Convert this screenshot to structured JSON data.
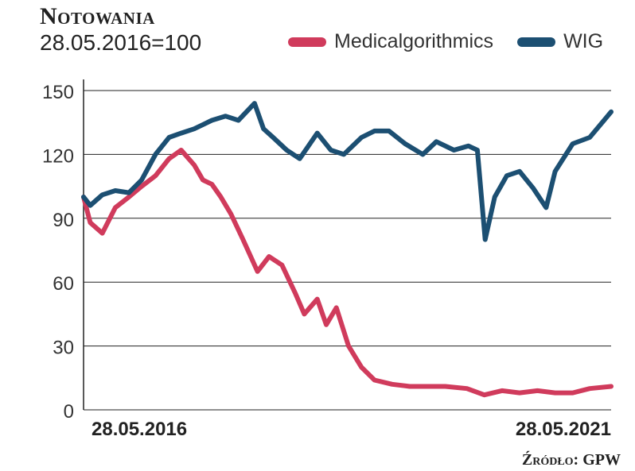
{
  "title": "Notowania",
  "subtitle": "28.05.2016=100",
  "source": "Źródło: GPW",
  "colors": {
    "medicalgorithmics": "#d03b5c",
    "wig": "#1c4f72",
    "grid": "#222222"
  },
  "chart_data": {
    "type": "line",
    "title": "Notowania",
    "subtitle": "28.05.2016=100",
    "ylim": [
      0,
      150
    ],
    "yticks": [
      "0",
      "30",
      "60",
      "90",
      "120",
      "150"
    ],
    "xlim": [
      "2016-05-28",
      "2021-05-28"
    ],
    "xticks": [
      "28.05.2016",
      "28.05.2021"
    ],
    "grid": true,
    "legend": "top-right",
    "series": [
      {
        "name": "Medicalgorithmics",
        "x": [
          "2016-05-28",
          "2016-06-20",
          "2016-08-01",
          "2016-09-15",
          "2016-11-01",
          "2016-12-15",
          "2017-02-01",
          "2017-03-20",
          "2017-05-01",
          "2017-06-15",
          "2017-07-15",
          "2017-08-15",
          "2017-09-15",
          "2017-10-20",
          "2017-12-01",
          "2018-01-20",
          "2018-03-01",
          "2018-04-15",
          "2018-05-30",
          "2018-07-01",
          "2018-08-15",
          "2018-09-15",
          "2018-10-20",
          "2018-12-01",
          "2019-01-15",
          "2019-03-01",
          "2019-05-01",
          "2019-07-01",
          "2019-09-01",
          "2019-11-01",
          "2020-01-15",
          "2020-03-15",
          "2020-05-15",
          "2020-07-15",
          "2020-09-15",
          "2020-11-15",
          "2021-01-15",
          "2021-03-15",
          "2021-05-28"
        ],
        "values": [
          100,
          88,
          83,
          95,
          100,
          105,
          110,
          118,
          122,
          115,
          108,
          106,
          100,
          92,
          80,
          65,
          72,
          68,
          55,
          45,
          52,
          40,
          48,
          30,
          20,
          14,
          12,
          11,
          11,
          11,
          10,
          7,
          9,
          8,
          9,
          8,
          8,
          10,
          11
        ]
      },
      {
        "name": "WIG",
        "x": [
          "2016-05-28",
          "2016-06-20",
          "2016-08-01",
          "2016-09-15",
          "2016-11-01",
          "2016-12-15",
          "2017-02-01",
          "2017-03-20",
          "2017-05-01",
          "2017-06-15",
          "2017-08-15",
          "2017-10-01",
          "2017-11-15",
          "2018-01-10",
          "2018-02-10",
          "2018-03-15",
          "2018-05-01",
          "2018-06-15",
          "2018-08-15",
          "2018-10-01",
          "2018-11-15",
          "2019-01-15",
          "2019-03-01",
          "2019-04-20",
          "2019-06-15",
          "2019-08-15",
          "2019-10-01",
          "2019-12-01",
          "2020-01-20",
          "2020-02-20",
          "2020-03-18",
          "2020-04-20",
          "2020-06-01",
          "2020-07-15",
          "2020-09-01",
          "2020-10-15",
          "2020-11-15",
          "2021-01-15",
          "2021-03-15",
          "2021-05-28"
        ],
        "values": [
          100,
          96,
          101,
          103,
          102,
          108,
          120,
          128,
          130,
          132,
          136,
          138,
          136,
          144,
          132,
          128,
          122,
          118,
          130,
          122,
          120,
          128,
          131,
          131,
          125,
          120,
          126,
          122,
          124,
          122,
          80,
          100,
          110,
          112,
          104,
          95,
          112,
          125,
          128,
          140
        ]
      }
    ]
  }
}
